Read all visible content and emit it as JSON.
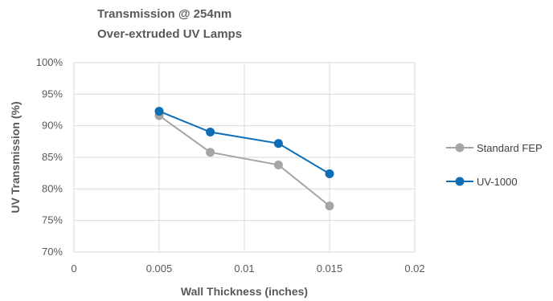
{
  "chart_data": {
    "type": "line",
    "title": [
      "Transmission @ 254nm",
      "Over-extruded UV Lamps"
    ],
    "xlabel": "Wall Thickness (inches)",
    "ylabel": "UV Transmission (%)",
    "xlim": [
      0,
      0.02
    ],
    "ylim": [
      70,
      100
    ],
    "x_ticks": [
      "0",
      "0.005",
      "0.01",
      "0.015",
      "0.02"
    ],
    "y_ticks": [
      "70%",
      "75%",
      "80%",
      "85%",
      "90%",
      "95%",
      "100%"
    ],
    "grid": true,
    "legend_position": "right",
    "series": [
      {
        "name": "Standard FEP",
        "color": "#a5a5a5",
        "x": [
          0.005,
          0.008,
          0.012,
          0.015
        ],
        "y": [
          91.6,
          85.8,
          83.8,
          77.3
        ]
      },
      {
        "name": "UV-1000",
        "color": "#0d6db5",
        "x": [
          0.005,
          0.008,
          0.012,
          0.015
        ],
        "y": [
          92.3,
          89.0,
          87.2,
          82.4
        ]
      }
    ]
  }
}
